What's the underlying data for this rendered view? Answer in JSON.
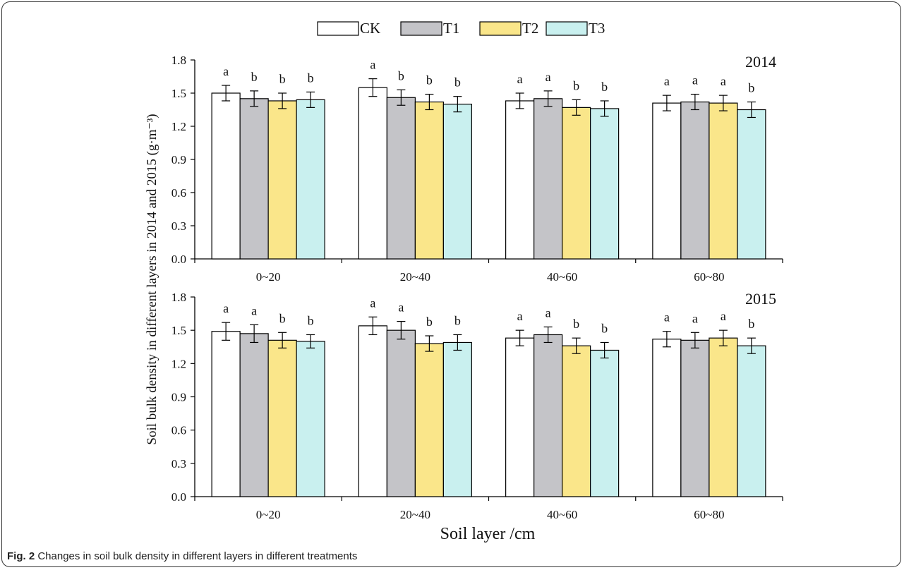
{
  "figure": {
    "caption_label": "Fig. 2",
    "caption_text": "Changes in soil bulk density in different layers in different treatments"
  },
  "colors": {
    "CK": "#ffffff",
    "T1": "#c4c4c8",
    "T2": "#fae68a",
    "T3": "#c9f0ef"
  },
  "chart_data": {
    "type": "bar",
    "ylabel": "Soil bulk density in different layers in 2014 and 2015 (g·m⁻³)",
    "xlabel": "Soil layer /cm",
    "legend": {
      "placement": "top-center",
      "entries": [
        "CK",
        "T1",
        "T2",
        "T3"
      ]
    },
    "categories": [
      "0~20",
      "20~40",
      "40~60",
      "60~80"
    ],
    "ylim": [
      0,
      1.8
    ],
    "yticks": [
      "0.0",
      "0.3",
      "0.6",
      "0.9",
      "1.2",
      "1.5",
      "1.8"
    ],
    "panels": [
      {
        "label": "2014",
        "series": [
          {
            "name": "CK",
            "values": [
              1.5,
              1.55,
              1.43,
              1.41
            ],
            "errors": [
              0.07,
              0.08,
              0.07,
              0.07
            ],
            "letters": [
              "a",
              "a",
              "a",
              "a"
            ]
          },
          {
            "name": "T1",
            "values": [
              1.45,
              1.46,
              1.45,
              1.42
            ],
            "errors": [
              0.07,
              0.07,
              0.07,
              0.07
            ],
            "letters": [
              "b",
              "b",
              "a",
              "a"
            ]
          },
          {
            "name": "T2",
            "values": [
              1.43,
              1.42,
              1.37,
              1.41
            ],
            "errors": [
              0.07,
              0.07,
              0.07,
              0.07
            ],
            "letters": [
              "b",
              "b",
              "b",
              "a"
            ]
          },
          {
            "name": "T3",
            "values": [
              1.44,
              1.4,
              1.36,
              1.35
            ],
            "errors": [
              0.07,
              0.07,
              0.07,
              0.07
            ],
            "letters": [
              "b",
              "b",
              "b",
              "b"
            ]
          }
        ]
      },
      {
        "label": "2015",
        "series": [
          {
            "name": "CK",
            "values": [
              1.49,
              1.54,
              1.43,
              1.42
            ],
            "errors": [
              0.08,
              0.08,
              0.07,
              0.07
            ],
            "letters": [
              "a",
              "a",
              "a",
              "a"
            ]
          },
          {
            "name": "T1",
            "values": [
              1.47,
              1.5,
              1.46,
              1.41
            ],
            "errors": [
              0.08,
              0.08,
              0.07,
              0.07
            ],
            "letters": [
              "a",
              "a",
              "a",
              "a"
            ]
          },
          {
            "name": "T2",
            "values": [
              1.41,
              1.38,
              1.36,
              1.43
            ],
            "errors": [
              0.07,
              0.07,
              0.07,
              0.07
            ],
            "letters": [
              "b",
              "b",
              "b",
              "a"
            ]
          },
          {
            "name": "T3",
            "values": [
              1.4,
              1.39,
              1.32,
              1.36
            ],
            "errors": [
              0.06,
              0.07,
              0.07,
              0.07
            ],
            "letters": [
              "b",
              "b",
              "b",
              "b"
            ]
          }
        ]
      }
    ]
  }
}
